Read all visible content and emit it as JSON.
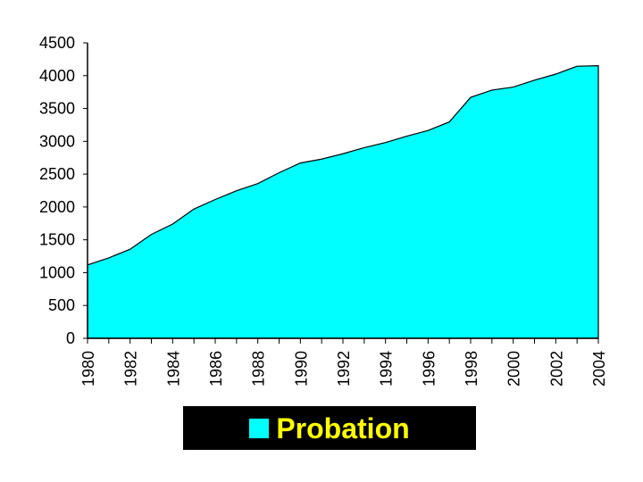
{
  "chart_data": {
    "type": "area",
    "x": [
      1980,
      1981,
      1982,
      1983,
      1984,
      1985,
      1986,
      1987,
      1988,
      1989,
      1990,
      1991,
      1992,
      1993,
      1994,
      1995,
      1996,
      1997,
      1998,
      1999,
      2000,
      2001,
      2002,
      2003,
      2004
    ],
    "series": [
      {
        "name": "Probation",
        "values": [
          1118,
          1225,
          1357,
          1582,
          1740,
          1969,
          2114,
          2247,
          2356,
          2522,
          2670,
          2729,
          2811,
          2903,
          2981,
          3078,
          3165,
          3296,
          3670,
          3780,
          3826,
          3932,
          4024,
          4144,
          4151
        ]
      }
    ],
    "x_tick_labels": [
      "1980",
      "1982",
      "1984",
      "1986",
      "1988",
      "1990",
      "1992",
      "1994",
      "1996",
      "1998",
      "2000",
      "2002",
      "2004"
    ],
    "y_tick_labels": [
      "0",
      "500",
      "1000",
      "1500",
      "2000",
      "2500",
      "3000",
      "3500",
      "4000",
      "4500"
    ],
    "ylim": [
      0,
      4500
    ],
    "xlim": [
      1980,
      2004
    ],
    "grid": false,
    "legend_position": "bottom",
    "colors": {
      "fill": "#00ffff",
      "stroke": "#000000",
      "legend_bg": "#000000",
      "legend_text": "#ffff00"
    }
  }
}
